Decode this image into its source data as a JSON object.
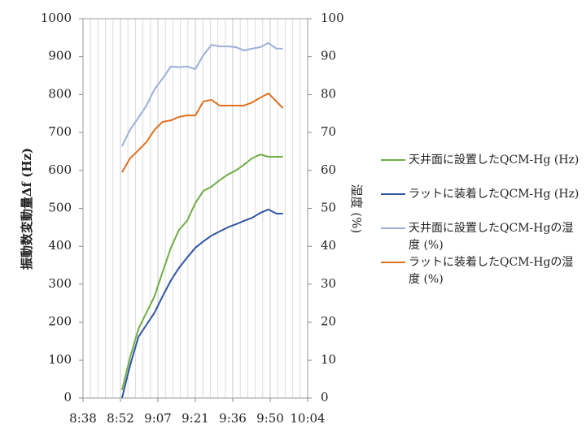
{
  "chart_data": {
    "type": "line",
    "y_label": "振動数変動量Δf (Hz)",
    "y2_label": "湿度 (%)",
    "x": [
      533.4,
      536.5,
      539.7,
      542.8,
      545.9,
      549.0,
      552.2,
      555.3,
      558.4,
      561.6,
      564.7,
      567.8,
      570.9,
      574.1,
      577.2,
      580.3,
      583.4,
      586.6,
      589.7,
      592.8,
      595.3
    ],
    "xlim": [
      518.4,
      604.8
    ],
    "xticks": [
      {
        "value": 518.4,
        "label": "8:38"
      },
      {
        "value": 532.8,
        "label": "8:52"
      },
      {
        "value": 547.2,
        "label": "9:07"
      },
      {
        "value": 561.6,
        "label": "9:21"
      },
      {
        "value": 576,
        "label": "9:36"
      },
      {
        "value": 590.4,
        "label": "9:50"
      },
      {
        "value": 604.8,
        "label": "10:04"
      }
    ],
    "ylim": [
      0,
      1000
    ],
    "yticks": [
      0,
      100,
      200,
      300,
      400,
      500,
      600,
      700,
      800,
      900,
      1000
    ],
    "y2lim": [
      0,
      100
    ],
    "y2ticks": [
      0,
      10,
      20,
      30,
      40,
      50,
      60,
      70,
      80,
      90,
      100
    ],
    "grid": true,
    "legend": "right",
    "series": [
      {
        "name": "天井面に設置したQCM-Hg (Hz)",
        "color": "#70ad47",
        "values": [
          21,
          107,
          182,
          225,
          268,
          332,
          396,
          443,
          467,
          514,
          546,
          557,
          574,
          589,
          600,
          615,
          632,
          642,
          636,
          636,
          636
        ]
      },
      {
        "name": "ラットに装着したQCM-Hg (Hz)",
        "color": "#2f55a4",
        "values": [
          0,
          86,
          161,
          193,
          225,
          268,
          310,
          343,
          370,
          396,
          413,
          428,
          439,
          450,
          458,
          467,
          475,
          488,
          497,
          486,
          486
        ]
      },
      {
        "name": "天井面に設置したQCM-Hgの湿度 (%)",
        "color": "#9dafd8",
        "axis": "y2",
        "values": [
          66.4,
          70.7,
          73.9,
          77.1,
          81.4,
          84.2,
          87.4,
          87.2,
          87.4,
          86.7,
          90.4,
          93.1,
          92.7,
          92.7,
          92.5,
          91.6,
          92.1,
          92.5,
          93.6,
          92.1,
          92.1
        ]
      },
      {
        "name": "ラットに装着したQCM-Hgの湿度 (%)",
        "color": "#e07020",
        "axis": "y2",
        "values": [
          59.5,
          63.2,
          65.3,
          67.5,
          70.7,
          72.8,
          73.2,
          74.1,
          74.5,
          74.5,
          78.2,
          78.6,
          77.1,
          77.1,
          77.1,
          77.1,
          77.9,
          79.2,
          80.3,
          78.2,
          76.4
        ]
      }
    ]
  }
}
